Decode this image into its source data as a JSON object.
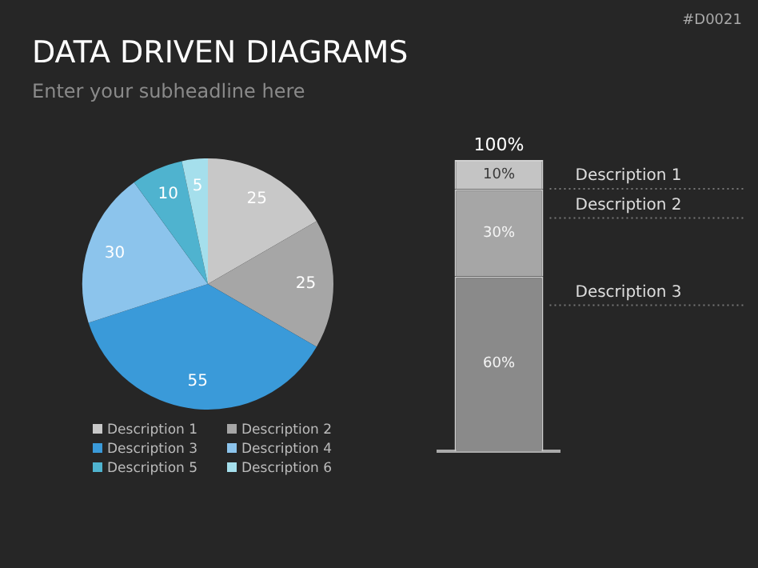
{
  "chart_data": [
    {
      "type": "pie",
      "title": "DATA DRIVEN DIAGRAMS",
      "subtitle": "Enter your subheadline here",
      "annotations": [
        "#D0021"
      ],
      "categories": [
        "Description 1",
        "Description 2",
        "Description 3",
        "Description 4",
        "Description 5",
        "Description 6"
      ],
      "values": [
        25,
        25,
        55,
        30,
        10,
        5
      ],
      "colors": [
        "#c8c8c8",
        "#a6a6a6",
        "#3a9ad9",
        "#8cc4ec",
        "#4fb3cf",
        "#a5dfec"
      ],
      "data_labels": true,
      "legend": "bottom"
    },
    {
      "type": "bar",
      "stacked": true,
      "categories": [
        null
      ],
      "tick_labels": false,
      "totals": [
        "100%"
      ],
      "series": [
        {
          "name": "Description 3",
          "color": "#8a8a8a",
          "values": [
            60
          ],
          "value_labels": [
            "60%"
          ]
        },
        {
          "name": "Description 2",
          "color": "#a6a6a6",
          "values": [
            30
          ],
          "value_labels": [
            "30%"
          ]
        },
        {
          "name": "Description 1",
          "color": "#c4c4c4",
          "values": [
            10
          ],
          "value_labels": [
            "10%"
          ]
        }
      ]
    }
  ]
}
